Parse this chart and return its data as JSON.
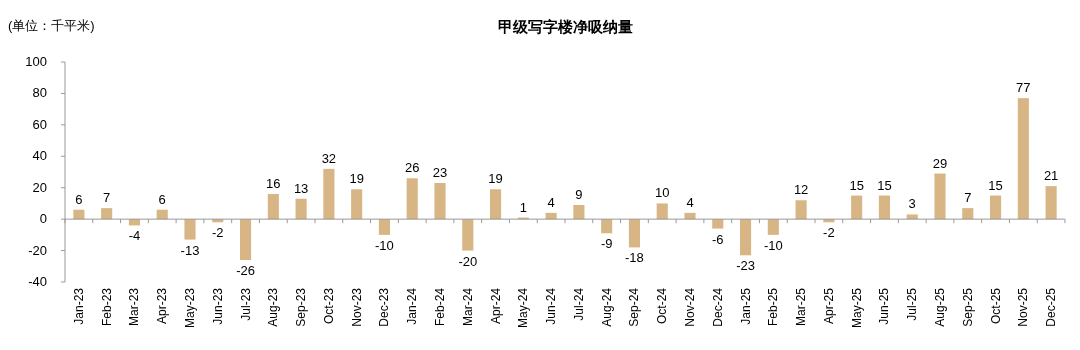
{
  "chart_data": {
    "type": "bar",
    "title": "甲级写字楼净吸纳量",
    "ylabel": "(单位：千平米)",
    "categories": [
      "Jan-23",
      "Feb-23",
      "Mar-23",
      "Apr-23",
      "May-23",
      "Jun-23",
      "Jul-23",
      "Aug-23",
      "Sep-23",
      "Oct-23",
      "Nov-23",
      "Dec-23",
      "Jan-24",
      "Feb-24",
      "Mar-24",
      "Apr-24",
      "May-24",
      "Jun-24",
      "Jul-24",
      "Aug-24",
      "Sep-24",
      "Oct-24",
      "Nov-24",
      "Dec-24",
      "Jan-25",
      "Feb-25",
      "Mar-25",
      "Apr-25",
      "May-25",
      "Jun-25",
      "Jul-25",
      "Aug-25",
      "Sep-25",
      "Oct-25",
      "Nov-25",
      "Dec-25"
    ],
    "values": [
      6,
      7,
      -4,
      6,
      -13,
      -2,
      -26,
      16,
      13,
      32,
      19,
      -10,
      26,
      23,
      -20,
      19,
      1,
      4,
      9,
      -9,
      -18,
      10,
      4,
      -6,
      -23,
      -10,
      12,
      -2,
      15,
      15,
      3,
      29,
      7,
      15,
      77,
      21
    ],
    "color": "#d8b584",
    "ylim": [
      -40,
      100
    ],
    "yticks": [
      -40,
      -20,
      0,
      20,
      40,
      60,
      80,
      100
    ],
    "data_labels": true
  }
}
